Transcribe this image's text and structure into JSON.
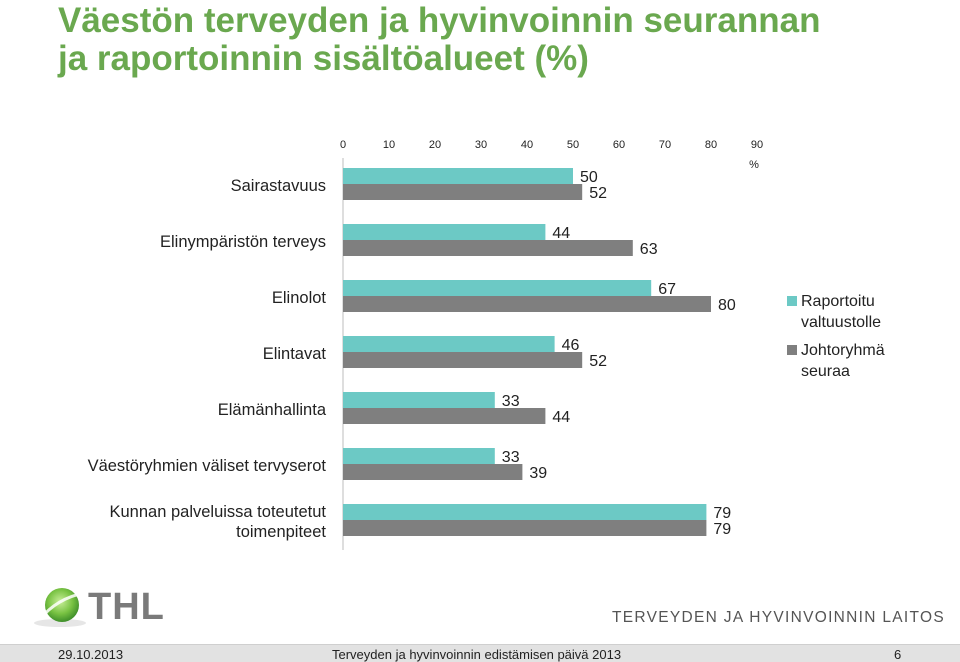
{
  "slide": {
    "title_line1": "Väestön terveyden ja hyvinvoinnin seurannan",
    "title_line2": "ja raportoinnin sisältöalueet (%)",
    "title_color": "#6aa84f"
  },
  "chart_data": {
    "type": "bar",
    "orientation": "horizontal",
    "categories": [
      [
        "Sairastavuus"
      ],
      [
        "Elinympäristön terveys"
      ],
      [
        "Elinolot"
      ],
      [
        "Elintavat"
      ],
      [
        "Elämänhallinta"
      ],
      [
        "Väestöryhmien väliset tervyserot"
      ],
      [
        "Kunnan palveluissa toteutetut",
        "toimenpiteet"
      ]
    ],
    "series": [
      {
        "name": "Raportoitu valtuustolle",
        "legend_lines": [
          "Raportoitu",
          "valtuustolle"
        ],
        "color": "#6cc9c5",
        "values": [
          50,
          44,
          67,
          46,
          33,
          33,
          79
        ]
      },
      {
        "name": "Johtoryhmä seuraa",
        "legend_lines": [
          "Johtoryhmä",
          "seuraa"
        ],
        "color": "#7f7f7f",
        "values": [
          52,
          63,
          80,
          52,
          44,
          39,
          79
        ]
      }
    ],
    "xlim": [
      0,
      90
    ],
    "xticks": [
      0,
      10,
      20,
      30,
      40,
      50,
      60,
      70,
      80,
      90
    ],
    "xaxis_position": "top",
    "unit_label": "%",
    "legend_position": "right",
    "grid": false
  },
  "logo": {
    "text": "THL",
    "icon": "thl-leaf-icon"
  },
  "org_name": "TERVEYDEN JA HYVINVOINNIN LAITOS",
  "footer": {
    "date": "29.10.2013",
    "event": "Terveyden ja hyvinvoinnin edistämisen päivä 2013",
    "page": "6"
  }
}
